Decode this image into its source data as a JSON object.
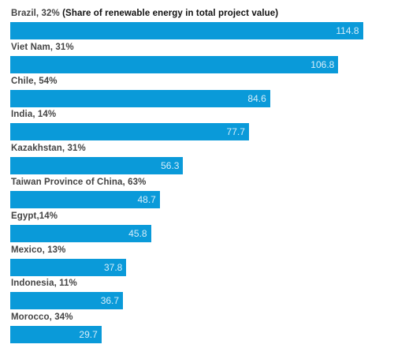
{
  "chart_data": {
    "type": "bar",
    "orientation": "horizontal",
    "title": "",
    "categories": [
      "Brazil, 32%",
      "Viet Nam, 31%",
      "Chile, 54%",
      "India, 14%",
      "Kazakhstan, 31%",
      "Taiwan Province of China, 63%",
      "Egypt,14%",
      "Mexico, 13%",
      "Indonesia, 11%",
      "Morocco, 34%"
    ],
    "values": [
      114.8,
      106.8,
      84.6,
      77.7,
      56.3,
      48.7,
      45.8,
      37.8,
      36.7,
      29.7
    ],
    "value_labels": [
      "114.8",
      "106.8",
      "84.6",
      "77.7",
      "56.3",
      "48.7",
      "45.8",
      "37.8",
      "36.7",
      "29.7"
    ],
    "annotation": "(Share of renewable energy in total project value)",
    "xlim": [
      0,
      118
    ],
    "grid": false,
    "bar_color": "#0a9ad9",
    "value_label_color": "#d7eefa",
    "label_color": "#444444"
  }
}
